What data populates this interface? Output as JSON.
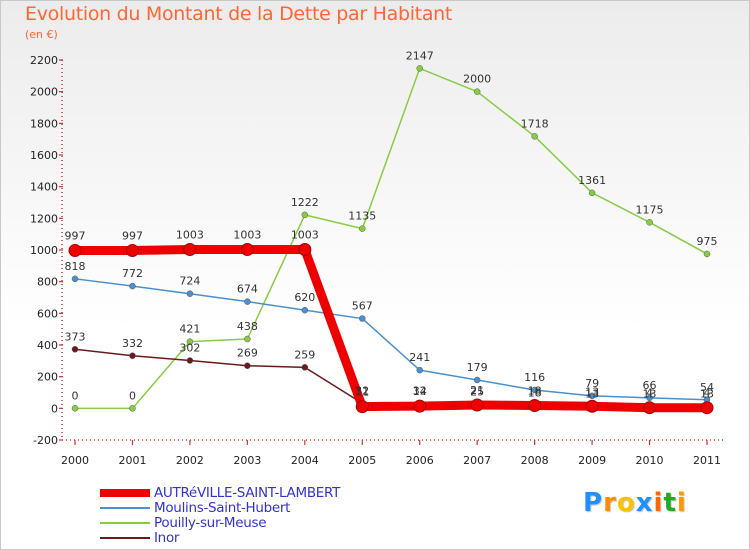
{
  "header": {
    "title": "Evolution du Montant de la Dette par Habitant",
    "subtitle": "(en €)"
  },
  "logo": {
    "text": "Proxiti",
    "letter_colors": [
      "#1e90ff",
      "#ff8c00",
      "#ffc200",
      "#1e90ff",
      "#ff6600",
      "#22aa22",
      "#ff9900"
    ]
  },
  "chart_data": {
    "type": "line",
    "x": [
      "2000",
      "2001",
      "2002",
      "2003",
      "2004",
      "2005",
      "2006",
      "2007",
      "2008",
      "2009",
      "2010",
      "2011"
    ],
    "ylim": [
      -200,
      2200
    ],
    "yticks": [
      -200,
      0,
      200,
      400,
      600,
      800,
      1000,
      1200,
      1400,
      1600,
      1800,
      2000,
      2200
    ],
    "grid": false,
    "legend_position": "bottom-left",
    "series": [
      {
        "name": "AUTRéVILLE-SAINT-LAMBERT",
        "color": "#ee0000",
        "values": [
          997,
          997,
          1003,
          1003,
          1003,
          11,
          14,
          21,
          18,
          13,
          4,
          4
        ]
      },
      {
        "name": "Moulins-Saint-Hubert",
        "color": "#4a90d0",
        "values": [
          818,
          772,
          724,
          674,
          620,
          567,
          241,
          179,
          116,
          79,
          66,
          54
        ]
      },
      {
        "name": "Pouilly-sur-Meuse",
        "color": "#88cc44",
        "values": [
          0,
          0,
          421,
          438,
          1222,
          1135,
          2147,
          2000,
          1718,
          1361,
          1175,
          975
        ]
      },
      {
        "name": "Inor",
        "color": "#6a1a1a",
        "values": [
          373,
          332,
          302,
          269,
          259,
          32,
          32,
          25,
          18,
          13,
          13,
          13
        ]
      }
    ]
  }
}
